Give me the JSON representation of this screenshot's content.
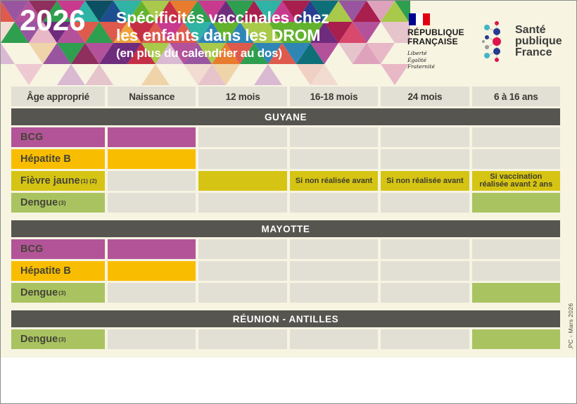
{
  "header": {
    "year": "2026",
    "title_line1": "Spécificités vaccinales chez",
    "title_line2": "les enfants dans les DROM",
    "subtitle": "(en plus du calendrier au dos)"
  },
  "logos": {
    "republique_francaise": {
      "name_line1": "RÉPUBLIQUE",
      "name_line2": "FRANÇAISE",
      "motto": [
        "Liberté",
        "Égalité",
        "Fraternité"
      ],
      "flag_colors": {
        "blue": "#000091",
        "white": "#ffffff",
        "red": "#e1000f"
      }
    },
    "sante_publique_france": {
      "line1": "Santé",
      "line2": "publique",
      "line3": "France",
      "dot_colors": {
        "navy": "#273a8e",
        "teal": "#43b5c5",
        "red": "#e0134b",
        "gray": "#9b9b9b"
      }
    }
  },
  "table": {
    "columns": [
      "Âge approprié",
      "Naissance",
      "12 mois",
      "16-18 mois",
      "24 mois",
      "6 à 16 ans"
    ],
    "sections": [
      {
        "name": "GUYANE",
        "rows": [
          {
            "label": "BCG",
            "sup": "",
            "color": "magenta",
            "cells": [
              {
                "fill": true,
                "text": ""
              },
              {
                "fill": false,
                "text": ""
              },
              {
                "fill": false,
                "text": ""
              },
              {
                "fill": false,
                "text": ""
              },
              {
                "fill": false,
                "text": ""
              }
            ]
          },
          {
            "label": "Hépatite B",
            "sup": "",
            "color": "amber",
            "cells": [
              {
                "fill": true,
                "text": ""
              },
              {
                "fill": false,
                "text": ""
              },
              {
                "fill": false,
                "text": ""
              },
              {
                "fill": false,
                "text": ""
              },
              {
                "fill": false,
                "text": ""
              }
            ]
          },
          {
            "label": "Fièvre jaune",
            "sup": "(1) (2)",
            "color": "mustard",
            "cells": [
              {
                "fill": false,
                "text": ""
              },
              {
                "fill": true,
                "text": ""
              },
              {
                "fill": true,
                "text": "Si non réalisée avant"
              },
              {
                "fill": true,
                "text": "Si non réalisée avant"
              },
              {
                "fill": true,
                "text": "Si vaccination réalisée avant 2 ans"
              }
            ]
          },
          {
            "label": "Dengue",
            "sup": "(3)",
            "color": "green",
            "cells": [
              {
                "fill": false,
                "text": ""
              },
              {
                "fill": false,
                "text": ""
              },
              {
                "fill": false,
                "text": ""
              },
              {
                "fill": false,
                "text": ""
              },
              {
                "fill": true,
                "text": ""
              }
            ]
          }
        ]
      },
      {
        "name": "MAYOTTE",
        "rows": [
          {
            "label": "BCG",
            "sup": "",
            "color": "magenta",
            "cells": [
              {
                "fill": true,
                "text": ""
              },
              {
                "fill": false,
                "text": ""
              },
              {
                "fill": false,
                "text": ""
              },
              {
                "fill": false,
                "text": ""
              },
              {
                "fill": false,
                "text": ""
              }
            ]
          },
          {
            "label": "Hépatite B",
            "sup": "",
            "color": "amber",
            "cells": [
              {
                "fill": true,
                "text": ""
              },
              {
                "fill": false,
                "text": ""
              },
              {
                "fill": false,
                "text": ""
              },
              {
                "fill": false,
                "text": ""
              },
              {
                "fill": false,
                "text": ""
              }
            ]
          },
          {
            "label": "Dengue",
            "sup": "(3)",
            "color": "green",
            "cells": [
              {
                "fill": false,
                "text": ""
              },
              {
                "fill": false,
                "text": ""
              },
              {
                "fill": false,
                "text": ""
              },
              {
                "fill": false,
                "text": ""
              },
              {
                "fill": true,
                "text": ""
              }
            ]
          }
        ]
      },
      {
        "name": "RÉUNION - ANTILLES",
        "rows": [
          {
            "label": "Dengue",
            "sup": "(3)",
            "color": "green",
            "cells": [
              {
                "fill": false,
                "text": ""
              },
              {
                "fill": false,
                "text": ""
              },
              {
                "fill": false,
                "text": ""
              },
              {
                "fill": false,
                "text": ""
              },
              {
                "fill": true,
                "text": ""
              }
            ]
          }
        ]
      }
    ]
  },
  "footer_note": ".PC  -  Mars 2026",
  "colors": {
    "cream": "#f7f4e2",
    "cell_empty": "#e2e0d5",
    "band": "#565550",
    "band_text": "#ffffff",
    "magenta": "#b35498",
    "amber": "#f9bd00",
    "mustard": "#d6c414",
    "green": "#a9c361"
  },
  "mosaic": {
    "palette_saturated": [
      "#0f6f78",
      "#0c4f63",
      "#1d4e8f",
      "#2f86b5",
      "#2e9e4f",
      "#63b22e",
      "#a9c94b",
      "#6f2c7d",
      "#9a55a0",
      "#b3529b",
      "#c83a8e",
      "#a81e4d",
      "#c52f45",
      "#de5a4c",
      "#e87b2e",
      "#efa13b",
      "#d9486d",
      "#273f8f",
      "#2fb3a5",
      "#8e2f5d"
    ],
    "palette_light": [
      "#eec9d2",
      "#e9b8c6",
      "#dfa2bc",
      "#f2dcd2",
      "#efd3a9",
      "#dab9d3",
      "#f4e6e1",
      "#e6c4cc",
      "#f1d0c4"
    ]
  }
}
